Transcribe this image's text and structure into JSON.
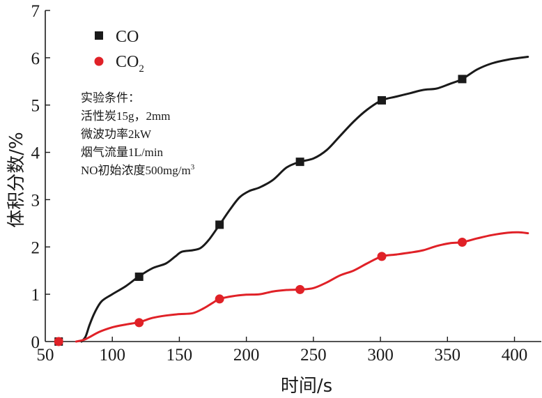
{
  "chart_data": {
    "type": "line",
    "title": "",
    "xlabel": "时间/s",
    "ylabel": "体积分数/%",
    "xlim": [
      50,
      420
    ],
    "ylim": [
      0,
      7
    ],
    "xticks": [
      50,
      100,
      150,
      200,
      250,
      300,
      350,
      400
    ],
    "yticks": [
      0,
      1,
      2,
      3,
      4,
      5,
      6,
      7
    ],
    "xtick_labels": [
      "50",
      "100",
      "150",
      "200",
      "250",
      "300",
      "350",
      "400"
    ],
    "ytick_labels": [
      "0",
      "1",
      "2",
      "3",
      "4",
      "5",
      "6",
      "7"
    ],
    "grid": false,
    "legend_position": "top-left",
    "series": [
      {
        "name": "CO",
        "name_main": "CO",
        "name_sub": "",
        "color": "#1a1a1a",
        "marker": "square",
        "markers": [
          [
            60,
            0
          ],
          [
            120,
            1.37
          ],
          [
            180,
            2.47
          ],
          [
            240,
            3.8
          ],
          [
            301,
            5.1
          ],
          [
            361,
            5.55
          ]
        ],
        "curve": [
          [
            77,
            0
          ],
          [
            80,
            0.1
          ],
          [
            83,
            0.35
          ],
          [
            87,
            0.62
          ],
          [
            92,
            0.85
          ],
          [
            100,
            1.0
          ],
          [
            110,
            1.17
          ],
          [
            120,
            1.38
          ],
          [
            130,
            1.55
          ],
          [
            140,
            1.65
          ],
          [
            147,
            1.8
          ],
          [
            152,
            1.9
          ],
          [
            160,
            1.93
          ],
          [
            166,
            1.98
          ],
          [
            172,
            2.15
          ],
          [
            180,
            2.47
          ],
          [
            188,
            2.8
          ],
          [
            195,
            3.05
          ],
          [
            202,
            3.18
          ],
          [
            210,
            3.26
          ],
          [
            220,
            3.42
          ],
          [
            230,
            3.68
          ],
          [
            240,
            3.8
          ],
          [
            250,
            3.87
          ],
          [
            260,
            4.05
          ],
          [
            270,
            4.35
          ],
          [
            280,
            4.65
          ],
          [
            290,
            4.9
          ],
          [
            301,
            5.1
          ],
          [
            312,
            5.18
          ],
          [
            322,
            5.25
          ],
          [
            332,
            5.32
          ],
          [
            342,
            5.35
          ],
          [
            352,
            5.45
          ],
          [
            361,
            5.55
          ],
          [
            372,
            5.75
          ],
          [
            383,
            5.88
          ],
          [
            395,
            5.96
          ],
          [
            410,
            6.02
          ]
        ]
      },
      {
        "name": "CO2",
        "name_main": "CO",
        "name_sub": "2",
        "color": "#e02127",
        "marker": "circle",
        "markers": [
          [
            60,
            0
          ],
          [
            120,
            0.4
          ],
          [
            180,
            0.9
          ],
          [
            240,
            1.1
          ],
          [
            301,
            1.8
          ],
          [
            361,
            2.1
          ]
        ],
        "curve": [
          [
            73,
            0
          ],
          [
            80,
            0.05
          ],
          [
            90,
            0.2
          ],
          [
            100,
            0.3
          ],
          [
            110,
            0.36
          ],
          [
            120,
            0.41
          ],
          [
            130,
            0.5
          ],
          [
            140,
            0.55
          ],
          [
            150,
            0.58
          ],
          [
            160,
            0.6
          ],
          [
            168,
            0.7
          ],
          [
            175,
            0.82
          ],
          [
            180,
            0.9
          ],
          [
            190,
            0.96
          ],
          [
            200,
            0.99
          ],
          [
            210,
            1.0
          ],
          [
            220,
            1.06
          ],
          [
            230,
            1.09
          ],
          [
            240,
            1.1
          ],
          [
            250,
            1.13
          ],
          [
            260,
            1.25
          ],
          [
            270,
            1.4
          ],
          [
            280,
            1.5
          ],
          [
            290,
            1.65
          ],
          [
            301,
            1.8
          ],
          [
            312,
            1.84
          ],
          [
            322,
            1.88
          ],
          [
            332,
            1.93
          ],
          [
            342,
            2.02
          ],
          [
            352,
            2.08
          ],
          [
            361,
            2.1
          ],
          [
            372,
            2.18
          ],
          [
            383,
            2.25
          ],
          [
            395,
            2.3
          ],
          [
            403,
            2.31
          ],
          [
            410,
            2.29
          ]
        ]
      }
    ],
    "annotation": {
      "lines": [
        "实验条件：",
        "活性炭15g，2mm",
        "微波功率2kW",
        "烟气流量1L/min",
        "NO初始浓度500mg/m"
      ],
      "last_line_superscript": "3"
    }
  }
}
